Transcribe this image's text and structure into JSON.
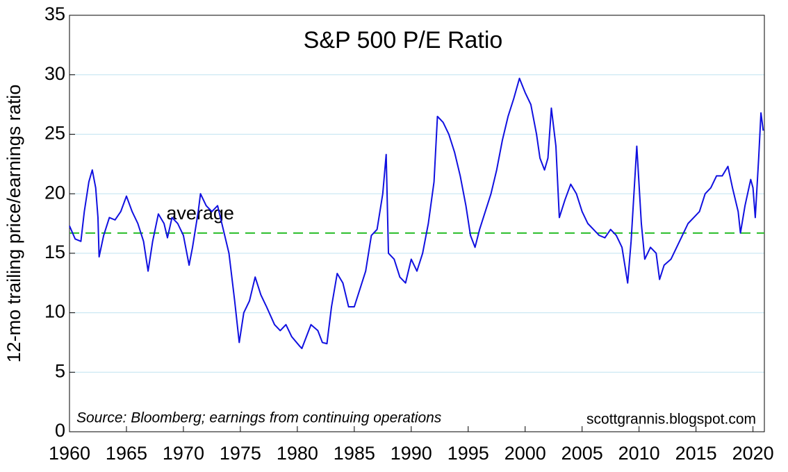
{
  "chart_data": {
    "type": "line",
    "title": "S&P 500 P/E Ratio",
    "y_label": "12-mo trailing price/earnings ratio",
    "annotations": [
      "Source: Bloomberg; earnings from continuing operations",
      "scottgrannis.blogspot.com"
    ],
    "color": "#1010e0",
    "x": [
      1960.0,
      1960.5,
      1961.0,
      1961.3,
      1961.7,
      1962.0,
      1962.3,
      1962.5,
      1962.6,
      1963.0,
      1963.5,
      1964.0,
      1964.5,
      1965.0,
      1965.5,
      1966.0,
      1966.5,
      1966.9,
      1967.3,
      1967.8,
      1968.3,
      1968.6,
      1969.0,
      1969.5,
      1970.0,
      1970.5,
      1970.8,
      1971.3,
      1971.5,
      1972.0,
      1972.5,
      1973.0,
      1973.5,
      1974.0,
      1974.5,
      1974.9,
      1975.3,
      1975.8,
      1976.3,
      1976.8,
      1977.3,
      1978.0,
      1978.5,
      1979.0,
      1979.5,
      1980.2,
      1980.4,
      1980.8,
      1981.2,
      1981.8,
      1982.2,
      1982.6,
      1983.0,
      1983.5,
      1984.0,
      1984.5,
      1985.0,
      1985.5,
      1986.0,
      1986.5,
      1987.0,
      1987.5,
      1987.8,
      1988.0,
      1988.5,
      1989.0,
      1989.5,
      1990.0,
      1990.5,
      1991.0,
      1991.5,
      1992.0,
      1992.3,
      1992.8,
      1993.3,
      1993.8,
      1994.3,
      1994.8,
      1995.2,
      1995.6,
      1996.0,
      1996.5,
      1997.0,
      1997.5,
      1998.0,
      1998.5,
      1999.0,
      1999.5,
      2000.0,
      2000.5,
      2001.0,
      2001.3,
      2001.7,
      2002.0,
      2002.3,
      2002.7,
      2003.0,
      2003.5,
      2004.0,
      2004.5,
      2005.0,
      2005.5,
      2006.0,
      2006.5,
      2007.0,
      2007.5,
      2008.0,
      2008.5,
      2009.0,
      2009.3,
      2009.8,
      2010.2,
      2010.5,
      2011.0,
      2011.5,
      2011.8,
      2012.2,
      2012.8,
      2013.3,
      2013.8,
      2014.3,
      2014.8,
      2015.3,
      2015.8,
      2016.3,
      2016.8,
      2017.3,
      2017.8,
      2018.2,
      2018.7,
      2018.9,
      2019.3,
      2019.8,
      2020.0,
      2020.2,
      2020.5,
      2020.7,
      2020.9
    ],
    "values": [
      17.3,
      16.2,
      16.0,
      18.5,
      21.0,
      22.0,
      20.5,
      18.0,
      14.7,
      16.5,
      18.0,
      17.8,
      18.5,
      19.8,
      18.5,
      17.5,
      16.0,
      13.5,
      16.0,
      18.3,
      17.5,
      16.3,
      18.0,
      17.5,
      16.5,
      14.0,
      15.5,
      18.5,
      20.0,
      19.0,
      18.5,
      19.0,
      17.0,
      15.0,
      11.0,
      7.5,
      10.0,
      11.0,
      13.0,
      11.5,
      10.5,
      9.0,
      8.5,
      9.0,
      8.0,
      7.2,
      7.0,
      8.0,
      9.0,
      8.5,
      7.5,
      7.4,
      10.5,
      13.3,
      12.5,
      10.5,
      10.5,
      12.0,
      13.5,
      16.5,
      17.0,
      20.0,
      23.3,
      15.0,
      14.5,
      13.0,
      12.5,
      14.5,
      13.5,
      15.0,
      17.5,
      21.0,
      26.5,
      26.0,
      25.0,
      23.5,
      21.5,
      19.0,
      16.5,
      15.5,
      17.0,
      18.5,
      20.0,
      22.0,
      24.5,
      26.5,
      28.0,
      29.7,
      28.5,
      27.5,
      25.0,
      23.0,
      22.0,
      23.0,
      27.2,
      24.0,
      18.0,
      19.5,
      20.8,
      20.0,
      18.5,
      17.5,
      17.0,
      16.5,
      16.3,
      17.0,
      16.5,
      15.5,
      12.5,
      16.0,
      24.0,
      17.5,
      14.5,
      15.5,
      15.0,
      12.8,
      14.0,
      14.5,
      15.5,
      16.5,
      17.5,
      18.0,
      18.5,
      20.0,
      20.5,
      21.5,
      21.5,
      22.3,
      20.5,
      18.5,
      16.7,
      19.0,
      21.2,
      20.5,
      18.0,
      23.0,
      26.8,
      25.3
    ],
    "average": {
      "label": "average",
      "value": 16.7,
      "color": "#22bb22"
    },
    "xlim": [
      1960,
      2021
    ],
    "xticks": [
      1960,
      1965,
      1970,
      1975,
      1980,
      1985,
      1990,
      1995,
      2000,
      2005,
      2010,
      2015,
      2020
    ],
    "ylim": [
      0,
      35
    ],
    "yticks": [
      0,
      5,
      10,
      15,
      20,
      25,
      30,
      35
    ],
    "grid": true
  }
}
